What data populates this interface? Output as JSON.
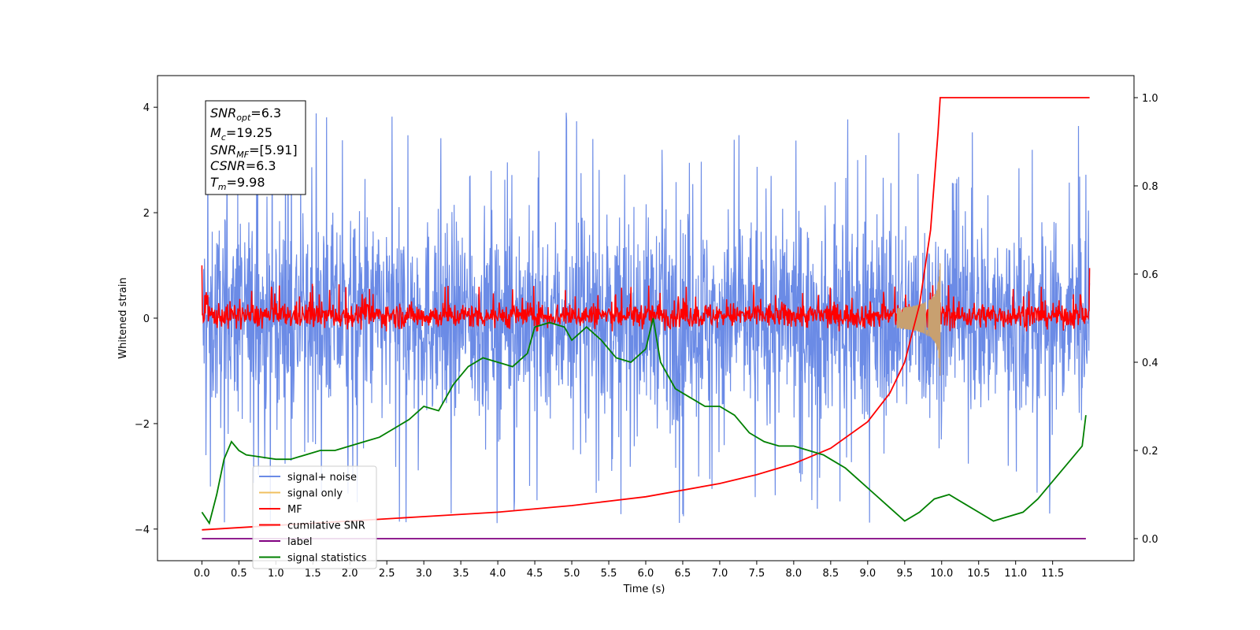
{
  "chart_data": {
    "type": "line",
    "xlabel": "Time (s)",
    "ylabel": "Whitened strain",
    "xlim": [
      -0.6,
      12.6
    ],
    "ylim": [
      -4.6,
      4.6
    ],
    "y2lim": [
      -0.05,
      1.05
    ],
    "xticks": [
      "0.0",
      "0.5",
      "1.0",
      "1.5",
      "2.0",
      "2.5",
      "3.0",
      "3.5",
      "4.0",
      "4.5",
      "5.0",
      "5.5",
      "6.0",
      "6.5",
      "7.0",
      "7.5",
      "8.0",
      "8.5",
      "9.0",
      "9.5",
      "10.0",
      "10.5",
      "11.0",
      "11.5"
    ],
    "yticks": [
      4,
      2,
      0,
      -2,
      -4
    ],
    "y2ticks": [
      "1.0",
      "0.8",
      "0.6",
      "0.4",
      "0.2",
      "0.0"
    ],
    "info_box": {
      "snr_opt": "=6.3",
      "mc": "=19.25",
      "snr_mf": "=[5.91]",
      "csnr": "=6.3",
      "tm": "=9.98"
    },
    "legend": {
      "placement": "lower-left",
      "entries": [
        {
          "label": "signal+ noise",
          "color": "#6b8be6"
        },
        {
          "label": "signal only",
          "color": "#f0c060"
        },
        {
          "label": "MF",
          "color": "#ff0000"
        },
        {
          "label": "cumilative SNR",
          "color": "#ff0000"
        },
        {
          "label": "label",
          "color": "#800080"
        },
        {
          "label": "signal statistics",
          "color": "#008000"
        }
      ]
    },
    "series": [
      {
        "name": "signal+ noise",
        "axis": "left",
        "color": "#6b8be6",
        "t_range": [
          0,
          12
        ],
        "envelope": [
          -4.1,
          4.15
        ]
      },
      {
        "name": "signal only",
        "axis": "left",
        "color": "#c8a070",
        "chirp_end": 9.98,
        "peak_amplitude": 1.2
      },
      {
        "name": "MF",
        "axis": "left",
        "color": "#ff0000",
        "t_range": [
          0,
          12
        ],
        "envelope": [
          -0.25,
          0.7
        ]
      },
      {
        "name": "cumilative SNR",
        "axis": "right",
        "color": "#ff0000",
        "x": [
          0.0,
          1.0,
          2.0,
          3.0,
          4.0,
          5.0,
          6.0,
          7.0,
          7.5,
          8.0,
          8.5,
          9.0,
          9.3,
          9.5,
          9.7,
          9.85,
          9.95,
          9.98,
          12.0
        ],
        "y": [
          0.02,
          0.03,
          0.04,
          0.05,
          0.06,
          0.075,
          0.095,
          0.125,
          0.145,
          0.17,
          0.205,
          0.265,
          0.33,
          0.4,
          0.53,
          0.7,
          0.92,
          1.0,
          1.0
        ]
      },
      {
        "name": "label",
        "axis": "right",
        "color": "#800080",
        "x": [
          0.0,
          11.95
        ],
        "y": [
          0.0,
          0.0
        ]
      },
      {
        "name": "signal statistics",
        "axis": "right",
        "color": "#008000",
        "x": [
          0.0,
          0.1,
          0.2,
          0.3,
          0.4,
          0.5,
          0.6,
          0.8,
          1.0,
          1.2,
          1.4,
          1.6,
          1.8,
          2.0,
          2.2,
          2.4,
          2.6,
          2.8,
          3.0,
          3.2,
          3.4,
          3.6,
          3.8,
          4.0,
          4.2,
          4.4,
          4.5,
          4.7,
          4.9,
          5.0,
          5.2,
          5.4,
          5.6,
          5.8,
          6.0,
          6.1,
          6.2,
          6.4,
          6.6,
          6.8,
          7.0,
          7.2,
          7.4,
          7.6,
          7.8,
          8.0,
          8.2,
          8.4,
          8.5,
          8.7,
          8.9,
          9.1,
          9.3,
          9.5,
          9.7,
          9.9,
          10.1,
          10.3,
          10.5,
          10.7,
          10.9,
          11.1,
          11.3,
          11.5,
          11.7,
          11.9,
          11.95
        ],
        "y": [
          0.06,
          0.035,
          0.1,
          0.18,
          0.22,
          0.2,
          0.19,
          0.185,
          0.18,
          0.18,
          0.19,
          0.2,
          0.2,
          0.21,
          0.22,
          0.23,
          0.25,
          0.27,
          0.3,
          0.29,
          0.35,
          0.39,
          0.41,
          0.4,
          0.39,
          0.42,
          0.48,
          0.49,
          0.48,
          0.45,
          0.48,
          0.45,
          0.41,
          0.4,
          0.43,
          0.5,
          0.4,
          0.34,
          0.32,
          0.3,
          0.3,
          0.28,
          0.24,
          0.22,
          0.21,
          0.21,
          0.2,
          0.19,
          0.18,
          0.16,
          0.13,
          0.1,
          0.07,
          0.04,
          0.06,
          0.09,
          0.1,
          0.08,
          0.06,
          0.04,
          0.05,
          0.06,
          0.09,
          0.13,
          0.17,
          0.21,
          0.28
        ]
      }
    ]
  }
}
